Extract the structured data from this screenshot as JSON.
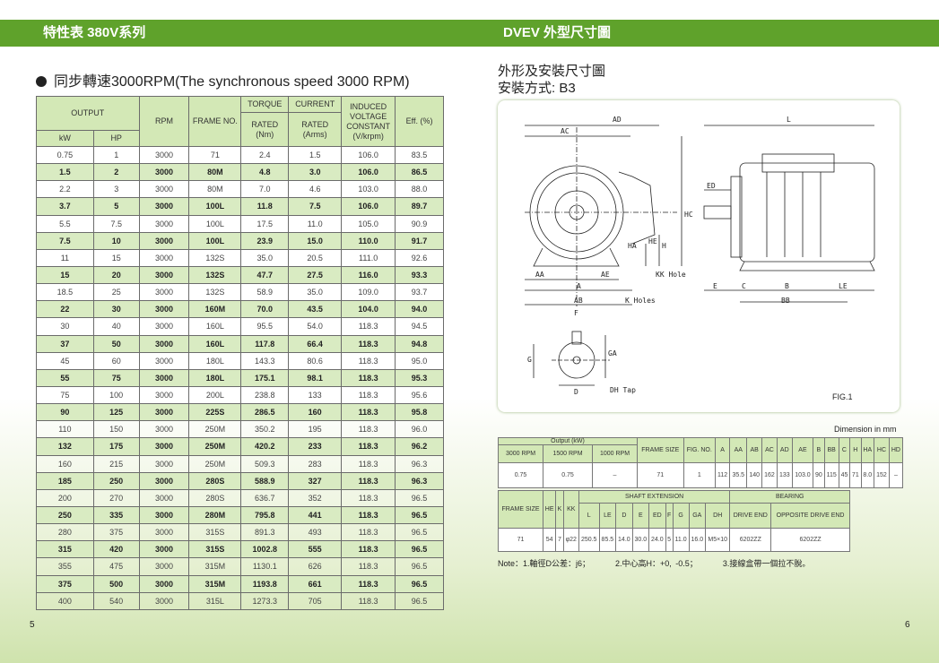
{
  "left_header": "特性表 380V系列",
  "right_header": "DVEV  外型尺寸圖",
  "subtitle": "同步轉速3000RPM(The synchronous speed 3000 RPM)",
  "spec_headers": {
    "output": "OUTPUT",
    "kw": "kW",
    "hp": "HP",
    "rpm": "RPM",
    "frame": "FRAME NO.",
    "torque": "TORQUE",
    "torque_rated": "RATED (Nm)",
    "current": "CURRENT",
    "current_rated": "RATED (Arms)",
    "induced": "INDUCED VOLTAGE CONSTANT (V/krpm)",
    "eff": "Eff. (%)"
  },
  "spec_rows": [
    [
      "0.75",
      "1",
      "3000",
      "71",
      "2.4",
      "1.5",
      "106.0",
      "83.5"
    ],
    [
      "1.5",
      "2",
      "3000",
      "80M",
      "4.8",
      "3.0",
      "106.0",
      "86.5"
    ],
    [
      "2.2",
      "3",
      "3000",
      "80M",
      "7.0",
      "4.6",
      "103.0",
      "88.0"
    ],
    [
      "3.7",
      "5",
      "3000",
      "100L",
      "11.8",
      "7.5",
      "106.0",
      "89.7"
    ],
    [
      "5.5",
      "7.5",
      "3000",
      "100L",
      "17.5",
      "11.0",
      "105.0",
      "90.9"
    ],
    [
      "7.5",
      "10",
      "3000",
      "100L",
      "23.9",
      "15.0",
      "110.0",
      "91.7"
    ],
    [
      "11",
      "15",
      "3000",
      "132S",
      "35.0",
      "20.5",
      "111.0",
      "92.6"
    ],
    [
      "15",
      "20",
      "3000",
      "132S",
      "47.7",
      "27.5",
      "116.0",
      "93.3"
    ],
    [
      "18.5",
      "25",
      "3000",
      "132S",
      "58.9",
      "35.0",
      "109.0",
      "93.7"
    ],
    [
      "22",
      "30",
      "3000",
      "160M",
      "70.0",
      "43.5",
      "104.0",
      "94.0"
    ],
    [
      "30",
      "40",
      "3000",
      "160L",
      "95.5",
      "54.0",
      "118.3",
      "94.5"
    ],
    [
      "37",
      "50",
      "3000",
      "160L",
      "117.8",
      "66.4",
      "118.3",
      "94.8"
    ],
    [
      "45",
      "60",
      "3000",
      "180L",
      "143.3",
      "80.6",
      "118.3",
      "95.0"
    ],
    [
      "55",
      "75",
      "3000",
      "180L",
      "175.1",
      "98.1",
      "118.3",
      "95.3"
    ],
    [
      "75",
      "100",
      "3000",
      "200L",
      "238.8",
      "133",
      "118.3",
      "95.6"
    ],
    [
      "90",
      "125",
      "3000",
      "225S",
      "286.5",
      "160",
      "118.3",
      "95.8"
    ],
    [
      "110",
      "150",
      "3000",
      "250M",
      "350.2",
      "195",
      "118.3",
      "96.0"
    ],
    [
      "132",
      "175",
      "3000",
      "250M",
      "420.2",
      "233",
      "118.3",
      "96.2"
    ],
    [
      "160",
      "215",
      "3000",
      "250M",
      "509.3",
      "283",
      "118.3",
      "96.3"
    ],
    [
      "185",
      "250",
      "3000",
      "280S",
      "588.9",
      "327",
      "118.3",
      "96.3"
    ],
    [
      "200",
      "270",
      "3000",
      "280S",
      "636.7",
      "352",
      "118.3",
      "96.5"
    ],
    [
      "250",
      "335",
      "3000",
      "280M",
      "795.8",
      "441",
      "118.3",
      "96.5"
    ],
    [
      "280",
      "375",
      "3000",
      "315S",
      "891.3",
      "493",
      "118.3",
      "96.5"
    ],
    [
      "315",
      "420",
      "3000",
      "315S",
      "1002.8",
      "555",
      "118.3",
      "96.5"
    ],
    [
      "355",
      "475",
      "3000",
      "315M",
      "1130.1",
      "626",
      "118.3",
      "96.5"
    ],
    [
      "375",
      "500",
      "3000",
      "315M",
      "1193.8",
      "661",
      "118.3",
      "96.5"
    ],
    [
      "400",
      "540",
      "3000",
      "315L",
      "1273.3",
      "705",
      "118.3",
      "96.5"
    ]
  ],
  "page_left": "5",
  "page_right": "6",
  "right_title_1": "外形及安裝尺寸圖",
  "right_title_2": "安裝方式: B3",
  "fig_label": "FIG.1",
  "diagram_labels": {
    "ad": "AD",
    "ac": "AC",
    "l": "L",
    "ed": "ED",
    "hc": "HC",
    "ha": "HA",
    "he": "HE",
    "h": "H",
    "aa": "AA",
    "ae": "AE",
    "kk": "KK Hole",
    "a": "A",
    "ab": "AB",
    "k": "K Holes",
    "e": "E",
    "c": "C",
    "b": "B",
    "le": "LE",
    "bb": "BB",
    "f": "F",
    "g": "G",
    "ga": "GA",
    "d": "D",
    "dh": "DH Tap"
  },
  "dimension_unit": "Dimension in mm",
  "dim_table1": {
    "output": "Output (kW)",
    "rpm3000": "3000 RPM",
    "rpm1500": "1500 RPM",
    "rpm1000": "1000 RPM",
    "frame": "FRAME SIZE",
    "fig": "FIG. NO.",
    "cols": [
      "A",
      "AA",
      "AB",
      "AC",
      "AD",
      "AE",
      "B",
      "BB",
      "C",
      "H",
      "HA",
      "HC",
      "HD"
    ],
    "row": {
      "o3000": "0.75",
      "o1500": "0.75",
      "o1000": "–",
      "frame": "71",
      "fig": "1",
      "vals": [
        "112",
        "35.5",
        "140",
        "162",
        "133",
        "103.0",
        "90",
        "115",
        "45",
        "71",
        "8.0",
        "152",
        "–"
      ]
    }
  },
  "dim_table2": {
    "frame": "FRAME SIZE",
    "he": "HE",
    "k": "K",
    "kk": "KK",
    "shaft": "SHAFT   EXTENSION",
    "bearing": "BEARING",
    "shaft_cols": [
      "L",
      "LE",
      "D",
      "E",
      "ED",
      "F",
      "G",
      "GA",
      "DH"
    ],
    "drive": "DRIVE END",
    "opposite": "OPPOSITE DRIVE END",
    "row": {
      "frame": "71",
      "he": "54",
      "k": "7",
      "kk": "φ22",
      "shaft": [
        "250.5",
        "85.5",
        "14.0",
        "30.0",
        "24.0",
        "5",
        "11.0",
        "16.0",
        "M5×10"
      ],
      "drive": "6202ZZ",
      "opposite": "6202ZZ"
    }
  },
  "notes": [
    "Note：1.軸徑D公差：j6；",
    "2.中心高H：+0, -0.5；",
    "3.接線盒帶一個拉不脫。"
  ]
}
